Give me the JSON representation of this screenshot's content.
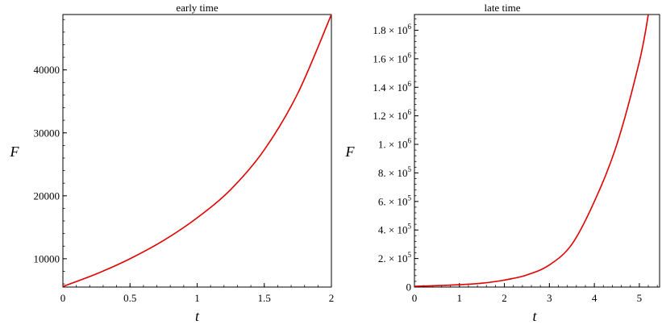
{
  "chart_data": [
    {
      "type": "line",
      "title": "early time",
      "xlabel": "t",
      "ylabel": "F",
      "xlim": [
        0,
        2
      ],
      "ylim": [
        5500,
        48800
      ],
      "xticks": [
        {
          "value": 0,
          "label": "0"
        },
        {
          "value": 0.5,
          "label": "0.5"
        },
        {
          "value": 1,
          "label": "1"
        },
        {
          "value": 1.5,
          "label": "1.5"
        },
        {
          "value": 2,
          "label": "2"
        }
      ],
      "yticks": [
        {
          "value": 10000,
          "label": "10000"
        },
        {
          "value": 20000,
          "label": "20000"
        },
        {
          "value": 30000,
          "label": "30000"
        },
        {
          "value": 40000,
          "label": "40000"
        }
      ],
      "grid": false,
      "color": "#e00000",
      "x": [
        0,
        0.25,
        0.5,
        0.75,
        1.0,
        1.25,
        1.5,
        1.75,
        2.0
      ],
      "y": [
        5600,
        7600,
        10000,
        12900,
        16500,
        21000,
        27300,
        36300,
        48800
      ]
    },
    {
      "type": "line",
      "title": "late time",
      "xlabel": "t",
      "ylabel": "F",
      "xlim": [
        0,
        5.45
      ],
      "ylim": [
        0,
        1910000
      ],
      "xticks": [
        {
          "value": 0,
          "label": "0"
        },
        {
          "value": 1,
          "label": "1"
        },
        {
          "value": 2,
          "label": "2"
        },
        {
          "value": 3,
          "label": "3"
        },
        {
          "value": 4,
          "label": "4"
        },
        {
          "value": 5,
          "label": "5"
        }
      ],
      "yticks": [
        {
          "value": 0,
          "mantissa": "0",
          "exp": ""
        },
        {
          "value": 200000,
          "mantissa": "2. × 10",
          "exp": "5"
        },
        {
          "value": 400000,
          "mantissa": "4. × 10",
          "exp": "5"
        },
        {
          "value": 600000,
          "mantissa": "6. × 10",
          "exp": "5"
        },
        {
          "value": 800000,
          "mantissa": "8. × 10",
          "exp": "5"
        },
        {
          "value": 1000000,
          "mantissa": "1. × 10",
          "exp": "6"
        },
        {
          "value": 1200000,
          "mantissa": "1.2 × 10",
          "exp": "6"
        },
        {
          "value": 1400000,
          "mantissa": "1.4 × 10",
          "exp": "6"
        },
        {
          "value": 1600000,
          "mantissa": "1.6 × 10",
          "exp": "6"
        },
        {
          "value": 1800000,
          "mantissa": "1.8 × 10",
          "exp": "6"
        }
      ],
      "grid": false,
      "color": "#e00000",
      "x": [
        0,
        0.5,
        1.0,
        1.5,
        2.0,
        2.5,
        3.0,
        3.5,
        4.0,
        4.5,
        5.0,
        5.2
      ],
      "y": [
        5600,
        10000,
        16500,
        27300,
        48800,
        85000,
        155000,
        300000,
        600000,
        1000000,
        1580000,
        1910000
      ]
    }
  ]
}
